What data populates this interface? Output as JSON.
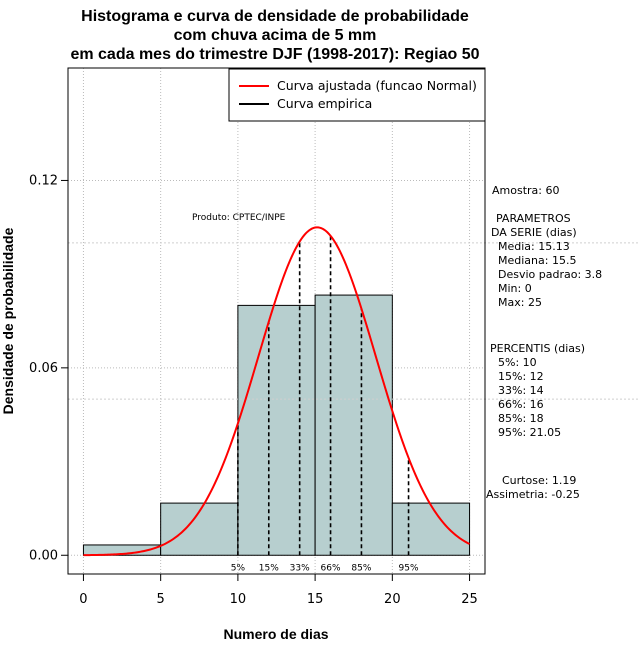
{
  "chart_data": {
    "type": "bar",
    "title_lines": [
      "Histograma e curva de densidade de probabilidade",
      "com chuva acima de 5 mm",
      "em cada mes do trimestre DJF (1998-2017): Regiao 50"
    ],
    "xlabel": "Numero de dias",
    "ylabel": "Densidade de probabilidade",
    "xlim": [
      -1,
      26
    ],
    "ylim": [
      -0.006,
      0.156
    ],
    "xticks": [
      "0",
      "5",
      "10",
      "15",
      "20",
      "25"
    ],
    "yticks": [
      "0.00",
      "0.06",
      "0.12"
    ],
    "histogram": {
      "bins": [
        [
          0,
          5
        ],
        [
          5,
          10
        ],
        [
          10,
          15
        ],
        [
          15,
          20
        ],
        [
          20,
          25
        ]
      ],
      "values": [
        0.0033,
        0.0167,
        0.08,
        0.0833,
        0.0167
      ]
    },
    "normal_curve": {
      "name": "Curva ajustada (funcao Normal)",
      "mean": 15.13,
      "sd": 3.8,
      "color": "#ff0000"
    },
    "empirical_curve": {
      "name": "Curva empirica",
      "color": "#000000"
    },
    "percentiles": [
      {
        "label": "5%",
        "x": 10
      },
      {
        "label": "15%",
        "x": 12
      },
      {
        "label": "33%",
        "x": 14
      },
      {
        "label": "66%",
        "x": 16
      },
      {
        "label": "85%",
        "x": 18
      },
      {
        "label": "95%",
        "x": 21.05
      }
    ],
    "reference_lines_y": [
      0.1,
      0.05
    ],
    "product_label": "Produto: CPTEC/INPE",
    "legend_position": "top-right",
    "bar_color": "#b7cfcf"
  },
  "stats_panel": {
    "amostra": "Amostra: 60",
    "param_header_1": "PARAMETROS",
    "param_header_2": "DA SERIE (dias)",
    "params": [
      "Media: 15.13",
      "Mediana: 15.5",
      "Desvio padrao: 3.8",
      "Min: 0",
      "Max: 25"
    ],
    "perc_header": "PERCENTIS (dias)",
    "percentis": [
      "5%: 10",
      "15%: 12",
      "33%: 14",
      "66%: 16",
      "85%: 18",
      "95%: 21.05"
    ],
    "curtose": "Curtose: 1.19",
    "assimetria": "Assimetria: -0.25"
  }
}
